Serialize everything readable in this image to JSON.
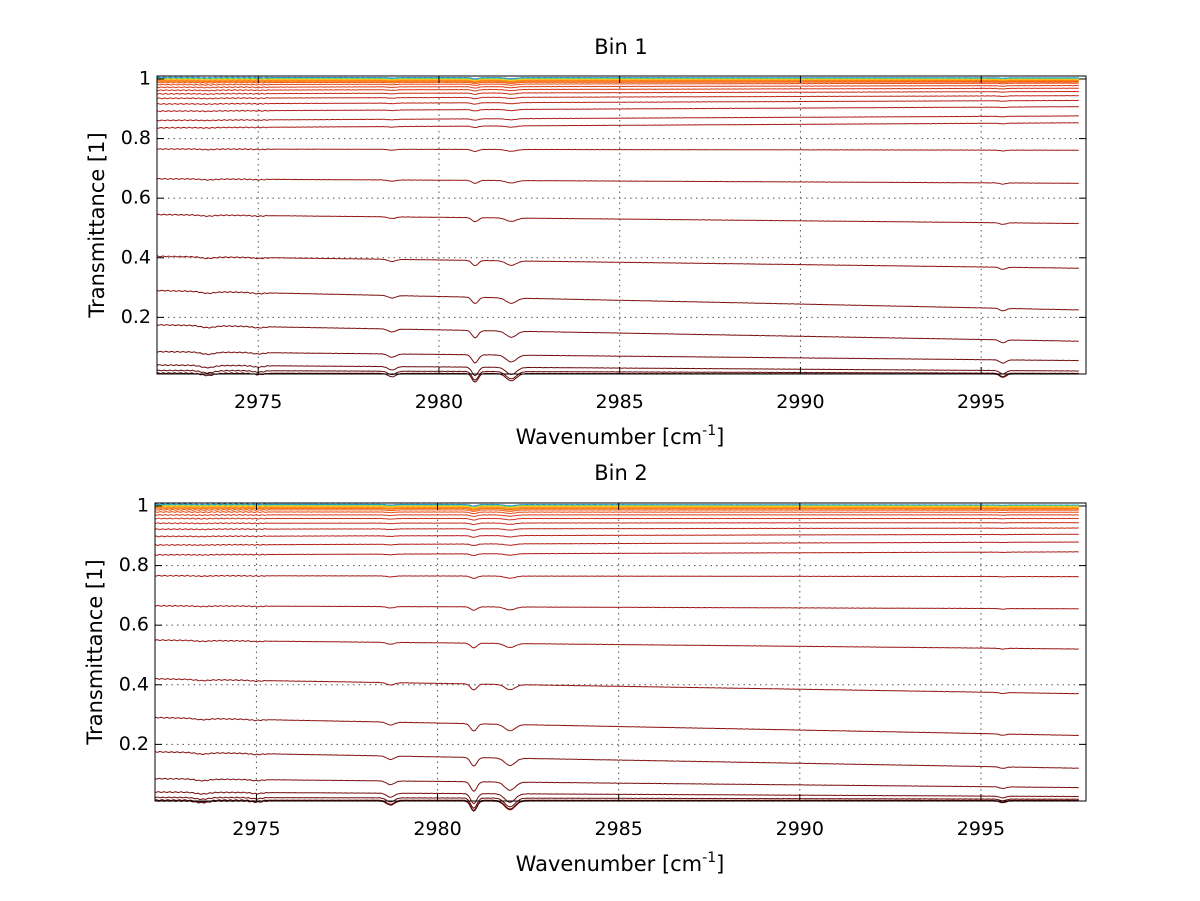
{
  "chart_data": [
    {
      "type": "line",
      "title": "Bin 1",
      "xlabel": "Wavenumber [cm",
      "xlabel_sup": "-1",
      "xlabel_end": "]",
      "ylabel": "Transmittance [1]",
      "xlim": [
        2972.2,
        2997.9
      ],
      "ylim": [
        0.01,
        1.01
      ],
      "xticks": [
        2975,
        2980,
        2985,
        2990,
        2995
      ],
      "yticks": [
        0.2,
        0.4,
        0.6,
        0.8,
        1
      ],
      "xtick_labels": [
        "2975",
        "2980",
        "2985",
        "2990",
        "2995"
      ],
      "ytick_labels": [
        "0.2",
        "0.4",
        "0.6",
        "0.8",
        "1"
      ],
      "grid": true,
      "x_range": [
        2972.2,
        2997.7
      ],
      "absorption_lines": [
        {
          "x": 2973.6,
          "depth": 0.008,
          "width": 0.25
        },
        {
          "x": 2975.0,
          "depth": 0.005,
          "width": 0.2
        },
        {
          "x": 2978.7,
          "depth": 0.012,
          "width": 0.15
        },
        {
          "x": 2981.0,
          "depth": 0.03,
          "width": 0.12
        },
        {
          "x": 2982.0,
          "depth": 0.025,
          "width": 0.2
        },
        {
          "x": 2995.6,
          "depth": 0.012,
          "width": 0.12
        }
      ],
      "series": [
        {
          "start": 1.005,
          "end": 1.004,
          "color": "#1f7bd6"
        },
        {
          "start": 1.003,
          "end": 1.003,
          "color": "#16b3c9"
        },
        {
          "start": 1.001,
          "end": 1.0,
          "color": "#8fd14a"
        },
        {
          "start": 0.999,
          "end": 0.999,
          "color": "#f6d323"
        },
        {
          "start": 0.997,
          "end": 0.997,
          "color": "#ffb020"
        },
        {
          "start": 0.995,
          "end": 0.995,
          "color": "#ff8c10"
        },
        {
          "start": 0.992,
          "end": 0.993,
          "color": "#f96c0c"
        },
        {
          "start": 0.988,
          "end": 0.99,
          "color": "#f05a10"
        },
        {
          "start": 0.981,
          "end": 0.986,
          "color": "#e64a14"
        },
        {
          "start": 0.972,
          "end": 0.978,
          "color": "#dc3e16"
        },
        {
          "start": 0.962,
          "end": 0.969,
          "color": "#d2341a"
        },
        {
          "start": 0.95,
          "end": 0.958,
          "color": "#c72c1a"
        },
        {
          "start": 0.935,
          "end": 0.944,
          "color": "#bf2619"
        },
        {
          "start": 0.916,
          "end": 0.928,
          "color": "#b8221a"
        },
        {
          "start": 0.892,
          "end": 0.907,
          "color": "#b11e18"
        },
        {
          "start": 0.861,
          "end": 0.876,
          "color": "#aa1c17"
        },
        {
          "start": 0.836,
          "end": 0.853,
          "color": "#a51a16"
        },
        {
          "start": 0.765,
          "end": 0.761,
          "color": "#9e1815"
        },
        {
          "start": 0.665,
          "end": 0.65,
          "color": "#971614"
        },
        {
          "start": 0.545,
          "end": 0.515,
          "color": "#901413"
        },
        {
          "start": 0.405,
          "end": 0.365,
          "color": "#891212"
        },
        {
          "start": 0.29,
          "end": 0.225,
          "color": "#821010"
        },
        {
          "start": 0.175,
          "end": 0.12,
          "color": "#7b0e0e"
        },
        {
          "start": 0.085,
          "end": 0.055,
          "color": "#740c0c"
        },
        {
          "start": 0.04,
          "end": 0.02,
          "color": "#6b0a0a"
        },
        {
          "start": 0.022,
          "end": 0.012,
          "color": "#620808"
        },
        {
          "start": 0.013,
          "end": 0.01,
          "color": "#560606"
        }
      ]
    },
    {
      "type": "line",
      "title": "Bin 2",
      "xlabel": "Wavenumber [cm",
      "xlabel_sup": "-1",
      "xlabel_end": "]",
      "ylabel": "Transmittance [1]",
      "xlim": [
        2972.2,
        2997.9
      ],
      "ylim": [
        0.01,
        1.01
      ],
      "xticks": [
        2975,
        2980,
        2985,
        2990,
        2995
      ],
      "yticks": [
        0.2,
        0.4,
        0.6,
        0.8,
        1
      ],
      "xtick_labels": [
        "2975",
        "2980",
        "2985",
        "2990",
        "2995"
      ],
      "ytick_labels": [
        "0.2",
        "0.4",
        "0.6",
        "0.8",
        "1"
      ],
      "grid": true,
      "x_range": [
        2972.2,
        2997.7
      ],
      "absorption_lines": [
        {
          "x": 2973.5,
          "depth": 0.006,
          "width": 0.25
        },
        {
          "x": 2975.0,
          "depth": 0.004,
          "width": 0.2
        },
        {
          "x": 2978.7,
          "depth": 0.014,
          "width": 0.15
        },
        {
          "x": 2981.0,
          "depth": 0.035,
          "width": 0.12
        },
        {
          "x": 2982.0,
          "depth": 0.03,
          "width": 0.2
        },
        {
          "x": 2995.6,
          "depth": 0.006,
          "width": 0.12
        }
      ],
      "series": [
        {
          "start": 1.006,
          "end": 1.003,
          "color": "#1f7bd6"
        },
        {
          "start": 1.004,
          "end": 1.002,
          "color": "#16b3c9"
        },
        {
          "start": 1.002,
          "end": 1.0,
          "color": "#8fd14a"
        },
        {
          "start": 1.0,
          "end": 0.998,
          "color": "#f6d323"
        },
        {
          "start": 0.998,
          "end": 0.996,
          "color": "#ffb020"
        },
        {
          "start": 0.995,
          "end": 0.993,
          "color": "#ff8c10"
        },
        {
          "start": 0.992,
          "end": 0.99,
          "color": "#f96c0c"
        },
        {
          "start": 0.987,
          "end": 0.986,
          "color": "#f05a10"
        },
        {
          "start": 0.98,
          "end": 0.979,
          "color": "#e64a14"
        },
        {
          "start": 0.97,
          "end": 0.97,
          "color": "#dc3e16"
        },
        {
          "start": 0.958,
          "end": 0.958,
          "color": "#d2341a"
        },
        {
          "start": 0.942,
          "end": 0.944,
          "color": "#c72c1a"
        },
        {
          "start": 0.922,
          "end": 0.926,
          "color": "#bf2619"
        },
        {
          "start": 0.898,
          "end": 0.905,
          "color": "#b8221a"
        },
        {
          "start": 0.869,
          "end": 0.879,
          "color": "#b11e18"
        },
        {
          "start": 0.836,
          "end": 0.846,
          "color": "#aa1c17"
        },
        {
          "start": 0.766,
          "end": 0.763,
          "color": "#a51a16"
        },
        {
          "start": 0.665,
          "end": 0.655,
          "color": "#9e1815"
        },
        {
          "start": 0.55,
          "end": 0.52,
          "color": "#971614"
        },
        {
          "start": 0.42,
          "end": 0.37,
          "color": "#901413"
        },
        {
          "start": 0.29,
          "end": 0.23,
          "color": "#891212"
        },
        {
          "start": 0.175,
          "end": 0.12,
          "color": "#821010"
        },
        {
          "start": 0.085,
          "end": 0.055,
          "color": "#7b0e0e"
        },
        {
          "start": 0.04,
          "end": 0.025,
          "color": "#740c0c"
        },
        {
          "start": 0.022,
          "end": 0.016,
          "color": "#6b0a0a"
        },
        {
          "start": 0.013,
          "end": 0.012,
          "color": "#620808"
        },
        {
          "start": 0.01,
          "end": 0.01,
          "color": "#560606"
        }
      ]
    }
  ]
}
